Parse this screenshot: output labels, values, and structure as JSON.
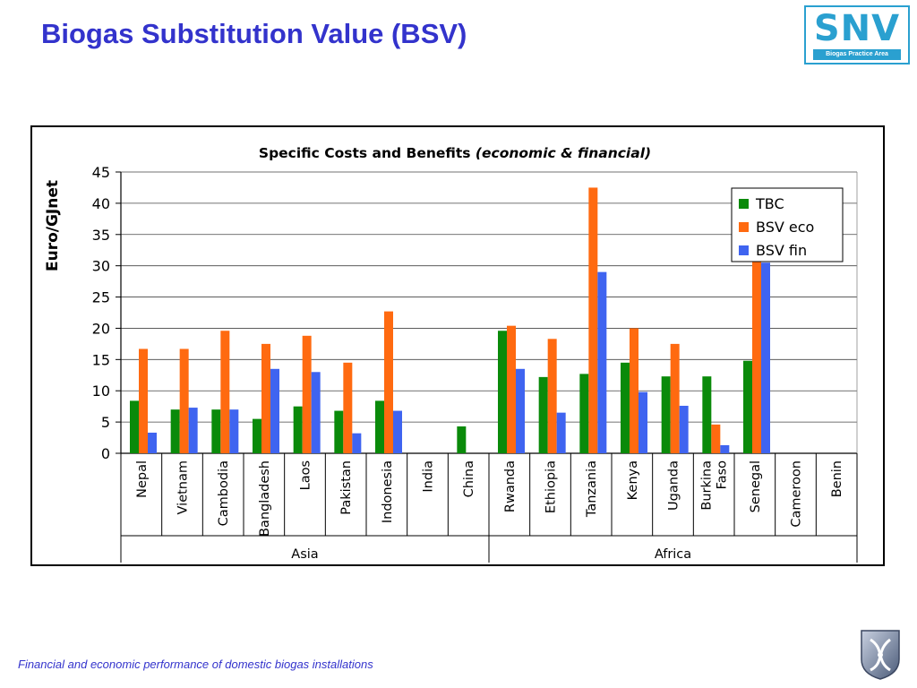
{
  "slide": {
    "title": "Biogas Substitution Value (BSV)",
    "footer": "Financial and economic performance of domestic biogas installations"
  },
  "logo": {
    "text": "SNV",
    "subtitle": "Biogas Practice Area",
    "color": "#2aa0d0"
  },
  "emblem": {
    "icon": "double-helix-emblem-icon"
  },
  "chart_data": {
    "type": "bar",
    "title_main": "Specific Costs and Benefits ",
    "title_italic": "(economic & financial)",
    "ylabel": "Euro/GJnet",
    "xlabel": "",
    "ylim": [
      0,
      45
    ],
    "yticks": [
      0,
      5,
      10,
      15,
      20,
      25,
      30,
      35,
      40,
      45
    ],
    "grid": true,
    "legend_position": "top-right",
    "categories": [
      "Nepal",
      "Vietnam",
      "Cambodia",
      "Bangladesh",
      "Laos",
      "Pakistan",
      "Indonesia",
      "India",
      "China",
      "Rwanda",
      "Ethiopia",
      "Tanzania",
      "Kenya",
      "Uganda",
      "Burkina Faso",
      "Senegal",
      "Cameroon",
      "Benin"
    ],
    "groups": [
      {
        "name": "Asia",
        "start": 0,
        "end": 8
      },
      {
        "name": "Africa",
        "start": 9,
        "end": 17
      }
    ],
    "series": [
      {
        "name": "TBC",
        "color": "#0a8a0a",
        "values": [
          8.4,
          7.0,
          7.0,
          5.5,
          7.5,
          6.8,
          8.4,
          null,
          4.3,
          19.6,
          12.2,
          12.7,
          14.5,
          12.3,
          12.3,
          14.8,
          null,
          null
        ]
      },
      {
        "name": "BSV eco",
        "color": "#ff6a10",
        "values": [
          16.7,
          16.7,
          19.6,
          17.5,
          18.8,
          14.5,
          22.7,
          null,
          null,
          20.4,
          18.3,
          42.5,
          20.0,
          17.5,
          4.6,
          30.8,
          null,
          null
        ]
      },
      {
        "name": "BSV fin",
        "color": "#3f64f0",
        "values": [
          3.3,
          7.3,
          7.0,
          13.5,
          13.0,
          3.2,
          6.8,
          null,
          null,
          13.5,
          6.5,
          29.0,
          9.8,
          7.6,
          1.3,
          30.5,
          null,
          null
        ]
      }
    ]
  }
}
